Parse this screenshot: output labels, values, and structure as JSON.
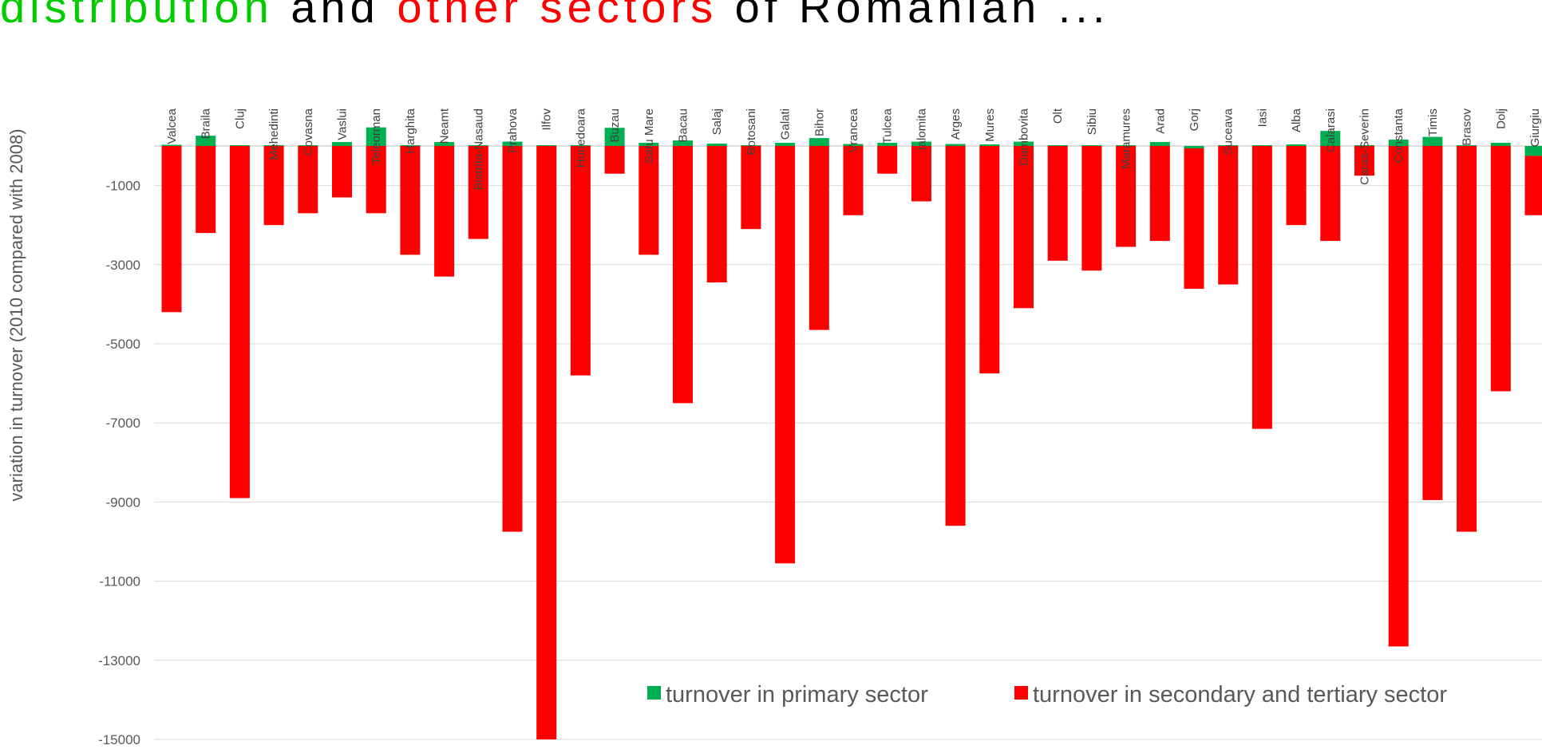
{
  "title_fragments": [
    {
      "text": "distribution",
      "color": "#00cc00"
    },
    {
      "text": " and ",
      "color": "#000000"
    },
    {
      "text": "other sectors",
      "color": "#ff0000"
    },
    {
      "text": " of Romanian ...",
      "color": "#000000"
    }
  ],
  "chart_data": {
    "type": "bar",
    "stacked": true,
    "title": "",
    "xlabel": "",
    "ylabel": "variation in turnover (2010 compared with 2008)",
    "ylim": [
      -15000,
      0
    ],
    "yticks": [
      -1000,
      -3000,
      -5000,
      -7000,
      -9000,
      -11000,
      -13000,
      -15000
    ],
    "grid": true,
    "legend": "bottom-right",
    "categories": [
      "Valcea",
      "Braila",
      "Cluj",
      "Mehedinti",
      "Covasna",
      "Vaslui",
      "Teleorman",
      "Harghita",
      "Neamt",
      "Bistrita-Nasaud",
      "Prahova",
      "Ilfov",
      "Hunedoara",
      "Buzau",
      "Satu Mare",
      "Bacau",
      "Salaj",
      "Botosani",
      "Galati",
      "Bihor",
      "Vrancea",
      "Tulcea",
      "Ialomita",
      "Arges",
      "Mures",
      "Dambovita",
      "Olt",
      "Sibiu",
      "Maramures",
      "Arad",
      "Gorj",
      "Suceava",
      "Iasi",
      "Alba",
      "Calarasi",
      "Caras-Severin",
      "Constanta",
      "Timis",
      "Brasov",
      "Dolj",
      "Giurgiu"
    ],
    "series": [
      {
        "name": "turnover in primary sector",
        "color": "#00b050",
        "values": [
          30,
          260,
          20,
          20,
          20,
          100,
          470,
          20,
          100,
          20,
          110,
          20,
          20,
          460,
          80,
          140,
          60,
          20,
          80,
          200,
          50,
          80,
          110,
          50,
          40,
          110,
          20,
          20,
          20,
          100,
          -60,
          20,
          20,
          40,
          380,
          20,
          160,
          230,
          20,
          80,
          -250
        ]
      },
      {
        "name": "turnover in secondary and tertiary sector",
        "color": "#ff0000",
        "values": [
          -4200,
          -2200,
          -8900,
          -2000,
          -1700,
          -1300,
          -1700,
          -2750,
          -3300,
          -2350,
          -9750,
          -15000,
          -5800,
          -700,
          -2750,
          -6500,
          -3450,
          -2100,
          -10550,
          -4650,
          -1750,
          -700,
          -1400,
          -9600,
          -5750,
          -4100,
          -2900,
          -3150,
          -2550,
          -2400,
          -3550,
          -3500,
          -7150,
          -2000,
          -2400,
          -750,
          -12650,
          -8950,
          -9750,
          -6200,
          -1500
        ]
      }
    ]
  }
}
